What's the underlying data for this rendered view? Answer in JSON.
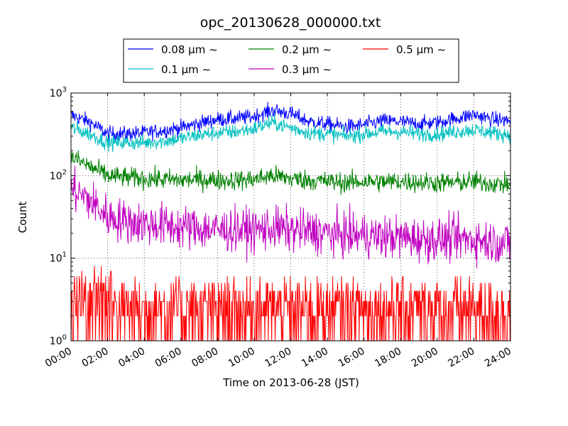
{
  "chart_data": {
    "type": "line",
    "title": "opc_20130628_000000.txt",
    "xlabel": "Time on 2013-06-28 (JST)",
    "ylabel": "Count",
    "xlim": [
      "00:00",
      "24:00"
    ],
    "ylim": [
      1,
      1000
    ],
    "yscale": "log",
    "grid": true,
    "legend_position": "top-center",
    "x_ticks": [
      "00:00",
      "02:00",
      "04:00",
      "06:00",
      "08:00",
      "10:00",
      "12:00",
      "14:00",
      "16:00",
      "18:00",
      "20:00",
      "22:00",
      "24:00"
    ],
    "y_ticks": [
      {
        "value": 1,
        "base": "10",
        "exp": "0"
      },
      {
        "value": 10,
        "base": "10",
        "exp": "1"
      },
      {
        "value": 100,
        "base": "10",
        "exp": "2"
      },
      {
        "value": 1000,
        "base": "10",
        "exp": "3"
      }
    ],
    "x_hours": [
      0,
      1,
      2,
      3,
      4,
      5,
      6,
      7,
      8,
      9,
      10,
      11,
      12,
      13,
      14,
      15,
      16,
      17,
      18,
      19,
      20,
      21,
      22,
      23,
      24
    ],
    "series": [
      {
        "name": "0.08 μm ~",
        "color": "#0000ff",
        "values": [
          540,
          450,
          320,
          320,
          330,
          350,
          380,
          430,
          480,
          490,
          520,
          620,
          560,
          450,
          420,
          390,
          410,
          460,
          450,
          420,
          440,
          490,
          550,
          480,
          460
        ]
      },
      {
        "name": "0.1 μm ~",
        "color": "#00bfbf",
        "values": [
          380,
          320,
          250,
          250,
          250,
          260,
          280,
          310,
          330,
          340,
          370,
          440,
          380,
          330,
          320,
          300,
          320,
          340,
          340,
          320,
          320,
          340,
          360,
          330,
          310
        ]
      },
      {
        "name": "0.2 μm ~",
        "color": "#008000",
        "values": [
          170,
          130,
          100,
          95,
          92,
          90,
          88,
          90,
          88,
          88,
          90,
          100,
          92,
          88,
          85,
          82,
          85,
          84,
          85,
          83,
          82,
          82,
          85,
          80,
          78
        ]
      },
      {
        "name": "0.3 μm ~",
        "color": "#bf00bf",
        "values": [
          70,
          50,
          32,
          28,
          26,
          25,
          24,
          23,
          22,
          22,
          22,
          23,
          22,
          21,
          20,
          19,
          19,
          18,
          18,
          17,
          17,
          17,
          17,
          16,
          15
        ]
      },
      {
        "name": "0.5 μm ~",
        "color": "#ff0000",
        "values": [
          5,
          3,
          3,
          2.5,
          2.5,
          2.5,
          2.5,
          2.5,
          2.5,
          2.5,
          2.5,
          2.5,
          2.5,
          2.5,
          2.5,
          2.5,
          2.5,
          2.5,
          2.5,
          2.5,
          2.5,
          2.5,
          2.5,
          2.5,
          2.5
        ]
      }
    ]
  }
}
